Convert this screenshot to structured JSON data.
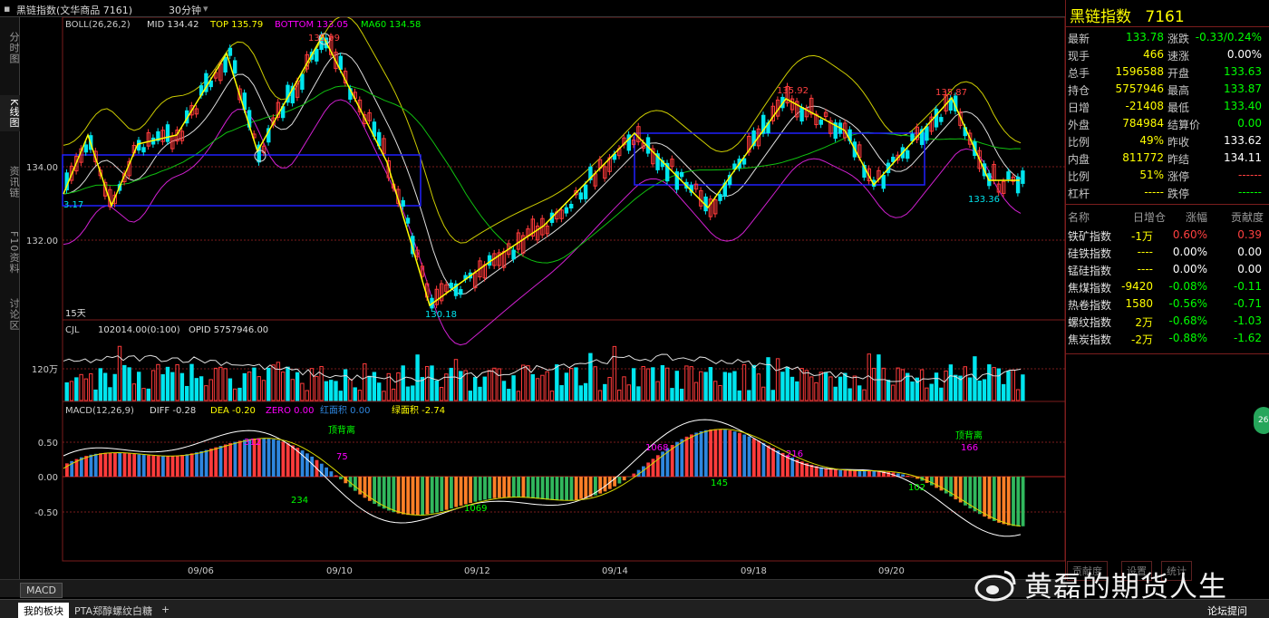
{
  "titlebar": {
    "name": "黑链指数(文华商品 7161)",
    "period": "30分钟"
  },
  "leftnav": [
    {
      "label": "分时图"
    },
    {
      "label": "K线图"
    },
    {
      "label": "资讯链"
    },
    {
      "label": "F10资料"
    },
    {
      "label": "讨论区"
    }
  ],
  "main_legend": {
    "boll": "BOLL(26,26,2)",
    "mid": "MID 134.42",
    "top": "TOP 135.79",
    "bottom": "BOTTOM 133.05",
    "ma60": "MA60 134.58"
  },
  "main_annotations": {
    "high1": "135.99",
    "low1": "130.18",
    "high2": "135.92",
    "high3": "135.87",
    "low2": "133.36",
    "edge_label": "3.17",
    "days": "15天"
  },
  "main_axis": {
    "y1": "134.00",
    "y2": "132.00"
  },
  "volume_legend": {
    "cjl": "CJL",
    "cjl_value": "102014.00(0:100)",
    "opid": "OPID 5757946.00",
    "axis": "120万"
  },
  "macd_legend": {
    "name": "MACD(12,26,9)",
    "diff": "DIFF -0.28",
    "dea": "DEA -0.20",
    "zero": "ZERO 0.00",
    "red_area": "红面积 0.00",
    "green_area": "绿面积 -2.74"
  },
  "macd_axis": {
    "p50": "0.50",
    "p00": "0.00",
    "n50": "-0.50"
  },
  "macd_annotations": {
    "top_div1": "顶背离",
    "top_div2": "顶背离",
    "a1": "312",
    "a2": "75",
    "a3": "234",
    "a4": "1069",
    "a5": "1068",
    "a6": "145",
    "a7": "216",
    "a8": "102",
    "a9": "166"
  },
  "x_axis": [
    "09/06",
    "09/10",
    "09/12",
    "09/14",
    "09/18",
    "09/20"
  ],
  "rightpanel": {
    "title": "黑链指数",
    "code": "7161",
    "quotes": [
      {
        "l1": "最新",
        "v1": "133.78",
        "c1": "#00ff00",
        "l2": "涨跌",
        "v2": "-0.33/0.24%",
        "c2": "#00ff00"
      },
      {
        "l1": "现手",
        "v1": "466",
        "c1": "#ffff00",
        "l2": "速涨",
        "v2": "0.00%",
        "c2": "#ffffff"
      },
      {
        "l1": "总手",
        "v1": "1596588",
        "c1": "#ffff00",
        "l2": "开盘",
        "v2": "133.63",
        "c2": "#00ff00"
      },
      {
        "l1": "持仓",
        "v1": "5757946",
        "c1": "#ffff00",
        "l2": "最高",
        "v2": "133.87",
        "c2": "#00ff00"
      },
      {
        "l1": "日增",
        "v1": "-21408",
        "c1": "#ffff00",
        "l2": "最低",
        "v2": "133.40",
        "c2": "#00ff00"
      },
      {
        "l1": "外盘",
        "v1": "784984",
        "c1": "#ffff00",
        "l2": "结算价",
        "v2": "0.00",
        "c2": "#00ff00"
      },
      {
        "l1": "比例",
        "v1": "49%",
        "c1": "#ffff00",
        "l2": "昨收",
        "v2": "133.62",
        "c2": "#ffffff"
      },
      {
        "l1": "内盘",
        "v1": "811772",
        "c1": "#ffff00",
        "l2": "昨结",
        "v2": "134.11",
        "c2": "#ffffff"
      },
      {
        "l1": "比例",
        "v1": "51%",
        "c1": "#ffff00",
        "l2": "涨停",
        "v2": "------",
        "c2": "#ff4040"
      },
      {
        "l1": "杠杆",
        "v1": "-----",
        "c1": "#ffff00",
        "l2": "跌停",
        "v2": "------",
        "c2": "#00ff00"
      }
    ],
    "list_header": {
      "name": "名称",
      "daily": "日增仓",
      "change": "涨幅",
      "contrib": "贡献度"
    },
    "list": [
      {
        "name": "铁矿指数",
        "daily": "-1万",
        "change": "0.60%",
        "contrib": "0.39",
        "cc": "#ff4040",
        "ct": "#ff4040"
      },
      {
        "name": "硅铁指数",
        "daily": "----",
        "change": "0.00%",
        "contrib": "0.00",
        "cc": "#ffffff",
        "ct": "#ffffff"
      },
      {
        "name": "锰硅指数",
        "daily": "----",
        "change": "0.00%",
        "contrib": "0.00",
        "cc": "#ffffff",
        "ct": "#ffffff"
      },
      {
        "name": "焦煤指数",
        "daily": "-9420",
        "change": "-0.08%",
        "contrib": "-0.11",
        "cc": "#00ff00",
        "ct": "#00ff00"
      },
      {
        "name": "热卷指数",
        "daily": "1580",
        "change": "-0.56%",
        "contrib": "-0.71",
        "cc": "#00ff00",
        "ct": "#00ff00"
      },
      {
        "name": "螺纹指数",
        "daily": "2万",
        "change": "-0.68%",
        "contrib": "-1.03",
        "cc": "#00ff00",
        "ct": "#00ff00"
      },
      {
        "name": "焦炭指数",
        "daily": "-2万",
        "change": "-0.88%",
        "contrib": "-1.62",
        "cc": "#00ff00",
        "ct": "#00ff00"
      }
    ],
    "bottom_tabs": [
      "贡献度",
      "设置",
      "统计"
    ]
  },
  "bottombar": {
    "macd_tab": "MACD",
    "tabs": [
      "我的板块",
      "PTA郑醇螺纹白糖",
      "+"
    ],
    "forum": "论坛提问"
  },
  "watermark": "黄磊的期货人生",
  "colors": {
    "up": "#ff3b3b",
    "down": "#00e5ee",
    "yellow": "#ffff00",
    "green": "#00ff00",
    "magenta": "#ff00ff",
    "grid": "#7a1d1d",
    "box": "#2020ff",
    "orange": "#ff7f27",
    "macd_green": "#31b85d",
    "macd_blue": "#2e86de"
  }
}
